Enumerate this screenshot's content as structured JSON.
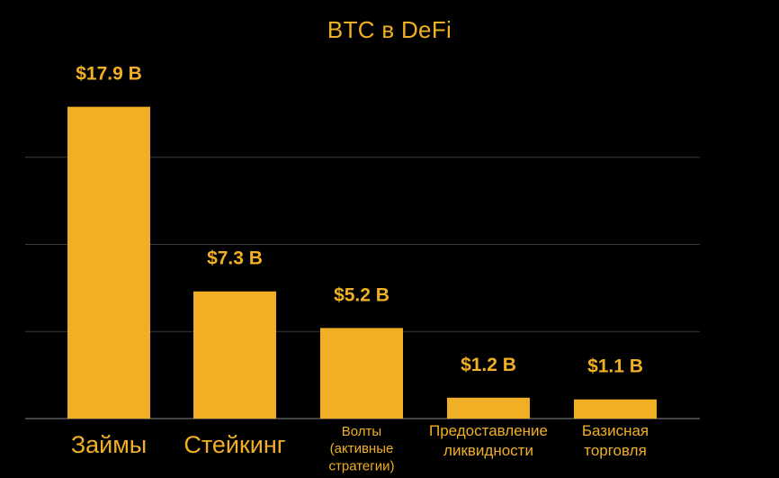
{
  "chart_data": {
    "type": "bar",
    "title": "BTC в DeFi",
    "categories": [
      [
        "Займы"
      ],
      [
        "Стейкинг"
      ],
      [
        "Волты",
        "(активные",
        "стратегии)"
      ],
      [
        "Предоставление",
        "ликвидности"
      ],
      [
        "Базисная",
        "торговля"
      ]
    ],
    "values": [
      17.9,
      7.3,
      5.2,
      1.2,
      1.1
    ],
    "value_labels": [
      "$17.9 B",
      "$7.3 B",
      "$5.2 B",
      "$1.2 B",
      "$1.1 B"
    ],
    "xlabel": "",
    "ylabel": "",
    "ylim": [
      0,
      20
    ],
    "grid": true,
    "legend": "none"
  },
  "colors": {
    "background": "#000000",
    "bar": "#F0AF24",
    "text": "#F0AF24",
    "grid": "#3a3a3a",
    "baseline": "#5a5a5a"
  }
}
